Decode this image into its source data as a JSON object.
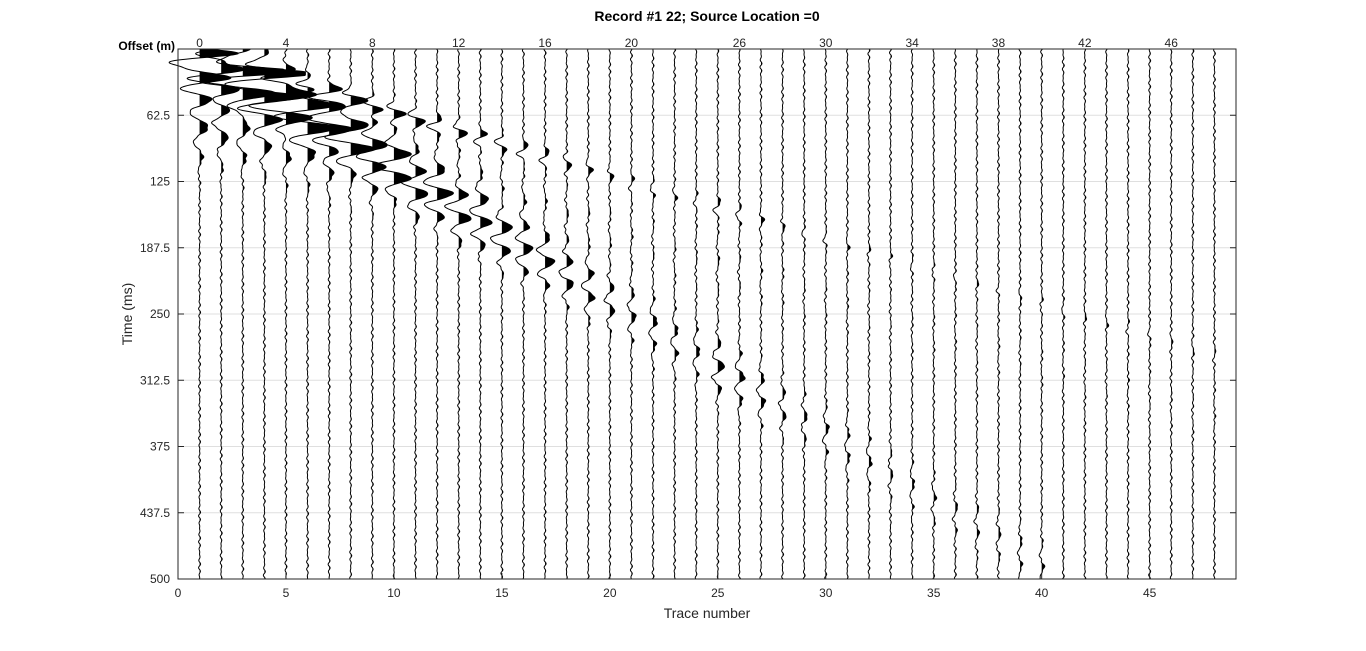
{
  "chart_data": {
    "type": "wiggle",
    "title": "Record #1  22; Source Location =0",
    "xlabel": "Trace number",
    "ylabel": "Time (ms)",
    "top_axis_label": "Offset (m)",
    "xlim": [
      0,
      49
    ],
    "ylim": [
      0,
      500
    ],
    "y_reversed": true,
    "grid": true,
    "x_ticks": [
      0,
      5,
      10,
      15,
      20,
      25,
      30,
      35,
      40,
      45
    ],
    "y_ticks": [
      62.5,
      125,
      187.5,
      250,
      312.5,
      375,
      437.5,
      500
    ],
    "top_ticks": [
      {
        "trace": 1,
        "label": "0"
      },
      {
        "trace": 5,
        "label": "4"
      },
      {
        "trace": 9,
        "label": "8"
      },
      {
        "trace": 13,
        "label": "12"
      },
      {
        "trace": 17,
        "label": "16"
      },
      {
        "trace": 21,
        "label": "20"
      },
      {
        "trace": 26,
        "label": "26"
      },
      {
        "trace": 30,
        "label": "30"
      },
      {
        "trace": 34,
        "label": "34"
      },
      {
        "trace": 38,
        "label": "38"
      },
      {
        "trace": 42,
        "label": "42"
      },
      {
        "trace": 46,
        "label": "46"
      }
    ],
    "trace_count": 48,
    "source_location": 0,
    "fill": "positive",
    "colors": {
      "trace": "#000000",
      "grid": "#dfdfdf",
      "axis": "#262626"
    },
    "first_arrival_ms": [
      7,
      8,
      12,
      18,
      24,
      30,
      36,
      42,
      48,
      54,
      60,
      66,
      72,
      78,
      84,
      90,
      96,
      102,
      108,
      114,
      120,
      126,
      132,
      138,
      144,
      150,
      156,
      162,
      168,
      174,
      180,
      186,
      192,
      198,
      204,
      210,
      216,
      222,
      228,
      234,
      240,
      246,
      252,
      258,
      264,
      270,
      276,
      282
    ],
    "surface_wave_ms": [
      14,
      18,
      28,
      40,
      52,
      62,
      74,
      86,
      100,
      112,
      126,
      138,
      150,
      162,
      176,
      188,
      200,
      212,
      226,
      238,
      250,
      262,
      276,
      288,
      300,
      312,
      326,
      338,
      350,
      362,
      376,
      388,
      400,
      412,
      426,
      438,
      450,
      462,
      476,
      488,
      500,
      500,
      500,
      500,
      500,
      500,
      500,
      500
    ],
    "peak_amplitude": [
      1.0,
      0.95,
      0.9,
      0.85,
      0.8,
      0.7,
      0.6,
      0.5,
      0.45,
      0.4,
      0.35,
      0.32,
      0.3,
      0.27,
      0.25,
      0.22,
      0.2,
      0.18,
      0.15,
      0.12,
      0.1,
      0.1,
      0.09,
      0.08,
      0.15,
      0.12,
      0.1,
      0.08,
      0.07,
      0.07,
      0.06,
      0.06,
      0.05,
      0.05,
      0.05,
      0.05,
      0.05,
      0.05,
      0.05,
      0.05,
      0.05,
      0.05,
      0.05,
      0.05,
      0.05,
      0.05,
      0.05,
      0.05
    ]
  }
}
